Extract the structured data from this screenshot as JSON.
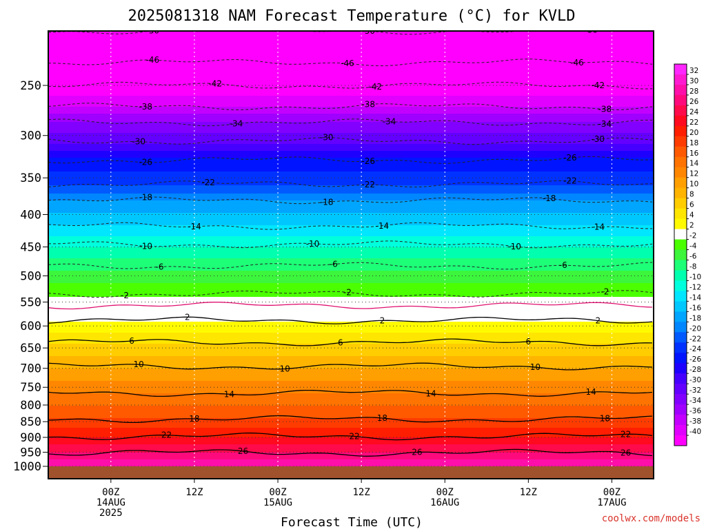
{
  "chart_data": {
    "type": "heatmap",
    "title": "2025081318 NAM Forecast Temperature (°C) for KVLD",
    "xlabel": "Forecast Time (UTC)",
    "ylabel": "",
    "credit": "coolwx.com/models",
    "x_range_hours": [
      -3,
      84
    ],
    "x_ticks": [
      {
        "hour": 6,
        "lines": [
          "00Z",
          "14AUG",
          "2025"
        ]
      },
      {
        "hour": 18,
        "lines": [
          "12Z"
        ]
      },
      {
        "hour": 30,
        "lines": [
          "00Z",
          "15AUG"
        ]
      },
      {
        "hour": 42,
        "lines": [
          "12Z"
        ]
      },
      {
        "hour": 54,
        "lines": [
          "00Z",
          "16AUG"
        ]
      },
      {
        "hour": 66,
        "lines": [
          "12Z"
        ]
      },
      {
        "hour": 78,
        "lines": [
          "00Z",
          "17AUG"
        ]
      }
    ],
    "y_scale": "log-pressure",
    "y_range_hpa": [
      1000,
      200
    ],
    "y_ticks": [
      "250",
      "300",
      "350",
      "400",
      "450",
      "500",
      "550",
      "600",
      "650",
      "700",
      "750",
      "800",
      "850",
      "900",
      "950",
      "1000"
    ],
    "ground_level_hpa": 1000,
    "temperature_profile": [
      {
        "p": 200,
        "t": -51
      },
      {
        "p": 230,
        "t": -46
      },
      {
        "p": 250,
        "t": -42
      },
      {
        "p": 270,
        "t": -38
      },
      {
        "p": 285,
        "t": -34
      },
      {
        "p": 310,
        "t": -30
      },
      {
        "p": 325,
        "t": -26
      },
      {
        "p": 360,
        "t": -22
      },
      {
        "p": 380,
        "t": -18
      },
      {
        "p": 415,
        "t": -14
      },
      {
        "p": 450,
        "t": -10
      },
      {
        "p": 490,
        "t": -6
      },
      {
        "p": 540,
        "t": -2
      },
      {
        "p": 560,
        "t": 0
      },
      {
        "p": 590,
        "t": 2
      },
      {
        "p": 640,
        "t": 6
      },
      {
        "p": 700,
        "t": 10
      },
      {
        "p": 765,
        "t": 14
      },
      {
        "p": 840,
        "t": 18
      },
      {
        "p": 900,
        "t": 22
      },
      {
        "p": 950,
        "t": 26
      },
      {
        "p": 1000,
        "t": 30
      }
    ],
    "contours": [
      {
        "label": "-50",
        "p": 205,
        "style": "dashed",
        "label_hours": [
          12,
          43,
          75
        ]
      },
      {
        "label": "-46",
        "p": 230,
        "style": "dashed",
        "label_hours": [
          12,
          40,
          73
        ]
      },
      {
        "label": "-42",
        "p": 250,
        "style": "dashed",
        "label_hours": [
          21,
          44,
          76
        ]
      },
      {
        "label": "-38",
        "p": 270,
        "style": "dashed",
        "label_hours": [
          11,
          43,
          77
        ]
      },
      {
        "label": "-34",
        "p": 286,
        "style": "dashed",
        "label_hours": [
          24,
          46,
          77
        ]
      },
      {
        "label": "-30",
        "p": 306,
        "style": "dashed",
        "label_hours": [
          10,
          37,
          76
        ]
      },
      {
        "label": "-26",
        "p": 328,
        "style": "dashed",
        "label_hours": [
          11,
          43,
          72
        ]
      },
      {
        "label": "-22",
        "p": 358,
        "style": "dashed",
        "label_hours": [
          20,
          43,
          72
        ]
      },
      {
        "label": "-18",
        "p": 380,
        "style": "dashed",
        "label_hours": [
          11,
          37,
          69
        ]
      },
      {
        "label": "-14",
        "p": 417,
        "style": "dashed",
        "label_hours": [
          18,
          45,
          76
        ]
      },
      {
        "label": "-10",
        "p": 446,
        "style": "dashed",
        "label_hours": [
          11,
          35,
          64
        ]
      },
      {
        "label": "-6",
        "p": 482,
        "style": "dashed",
        "label_hours": [
          13,
          38,
          71
        ]
      },
      {
        "label": "-2",
        "p": 534,
        "style": "dashed",
        "label_hours": [
          8,
          40,
          77
        ]
      },
      {
        "label": "",
        "p": 557,
        "style": "zero",
        "label_hours": []
      },
      {
        "label": "2",
        "p": 588,
        "style": "solid",
        "label_hours": [
          17,
          45,
          76
        ]
      },
      {
        "label": "6",
        "p": 637,
        "style": "solid",
        "label_hours": [
          9,
          39,
          66
        ]
      },
      {
        "label": "10",
        "p": 695,
        "style": "solid",
        "label_hours": [
          10,
          31,
          67
        ]
      },
      {
        "label": "14",
        "p": 766,
        "style": "solid",
        "label_hours": [
          23,
          52,
          75
        ]
      },
      {
        "label": "18",
        "p": 842,
        "style": "solid",
        "label_hours": [
          18,
          45,
          77
        ]
      },
      {
        "label": "22",
        "p": 897,
        "style": "solid",
        "label_hours": [
          14,
          41,
          80
        ]
      },
      {
        "label": "26",
        "p": 952,
        "style": "solid",
        "label_hours": [
          25,
          50,
          80
        ]
      }
    ],
    "colorbar": {
      "labels": [
        "32",
        "30",
        "28",
        "26",
        "24",
        "22",
        "20",
        "18",
        "16",
        "14",
        "12",
        "10",
        "8",
        "6",
        "4",
        "2",
        "-2",
        "-4",
        "-6",
        "-8",
        "-10",
        "-12",
        "-14",
        "-16",
        "-18",
        "-20",
        "-22",
        "-24",
        "-26",
        "-28",
        "-30",
        "-32",
        "-34",
        "-36",
        "-38",
        "-40"
      ],
      "colors": [
        "#ff26ff",
        "#ff1ad2",
        "#ff0faa",
        "#ff0a7d",
        "#ff0a4b",
        "#ff0a1e",
        "#ff1e00",
        "#ff3c00",
        "#ff5a00",
        "#ff7300",
        "#ff8700",
        "#ffa000",
        "#ffb400",
        "#ffcd00",
        "#ffe600",
        "#fffa00",
        "#ffffff",
        "#4bff00",
        "#3cf53c",
        "#1eff78",
        "#00ffaf",
        "#00ffdc",
        "#00e6ff",
        "#00c8ff",
        "#00a5ff",
        "#0087ff",
        "#005aff",
        "#0032ff",
        "#0014ff",
        "#1e00ff",
        "#4600ff",
        "#6400ff",
        "#8200ff",
        "#a000ff",
        "#c300ff",
        "#e100ff",
        "#ff00ff"
      ]
    }
  }
}
